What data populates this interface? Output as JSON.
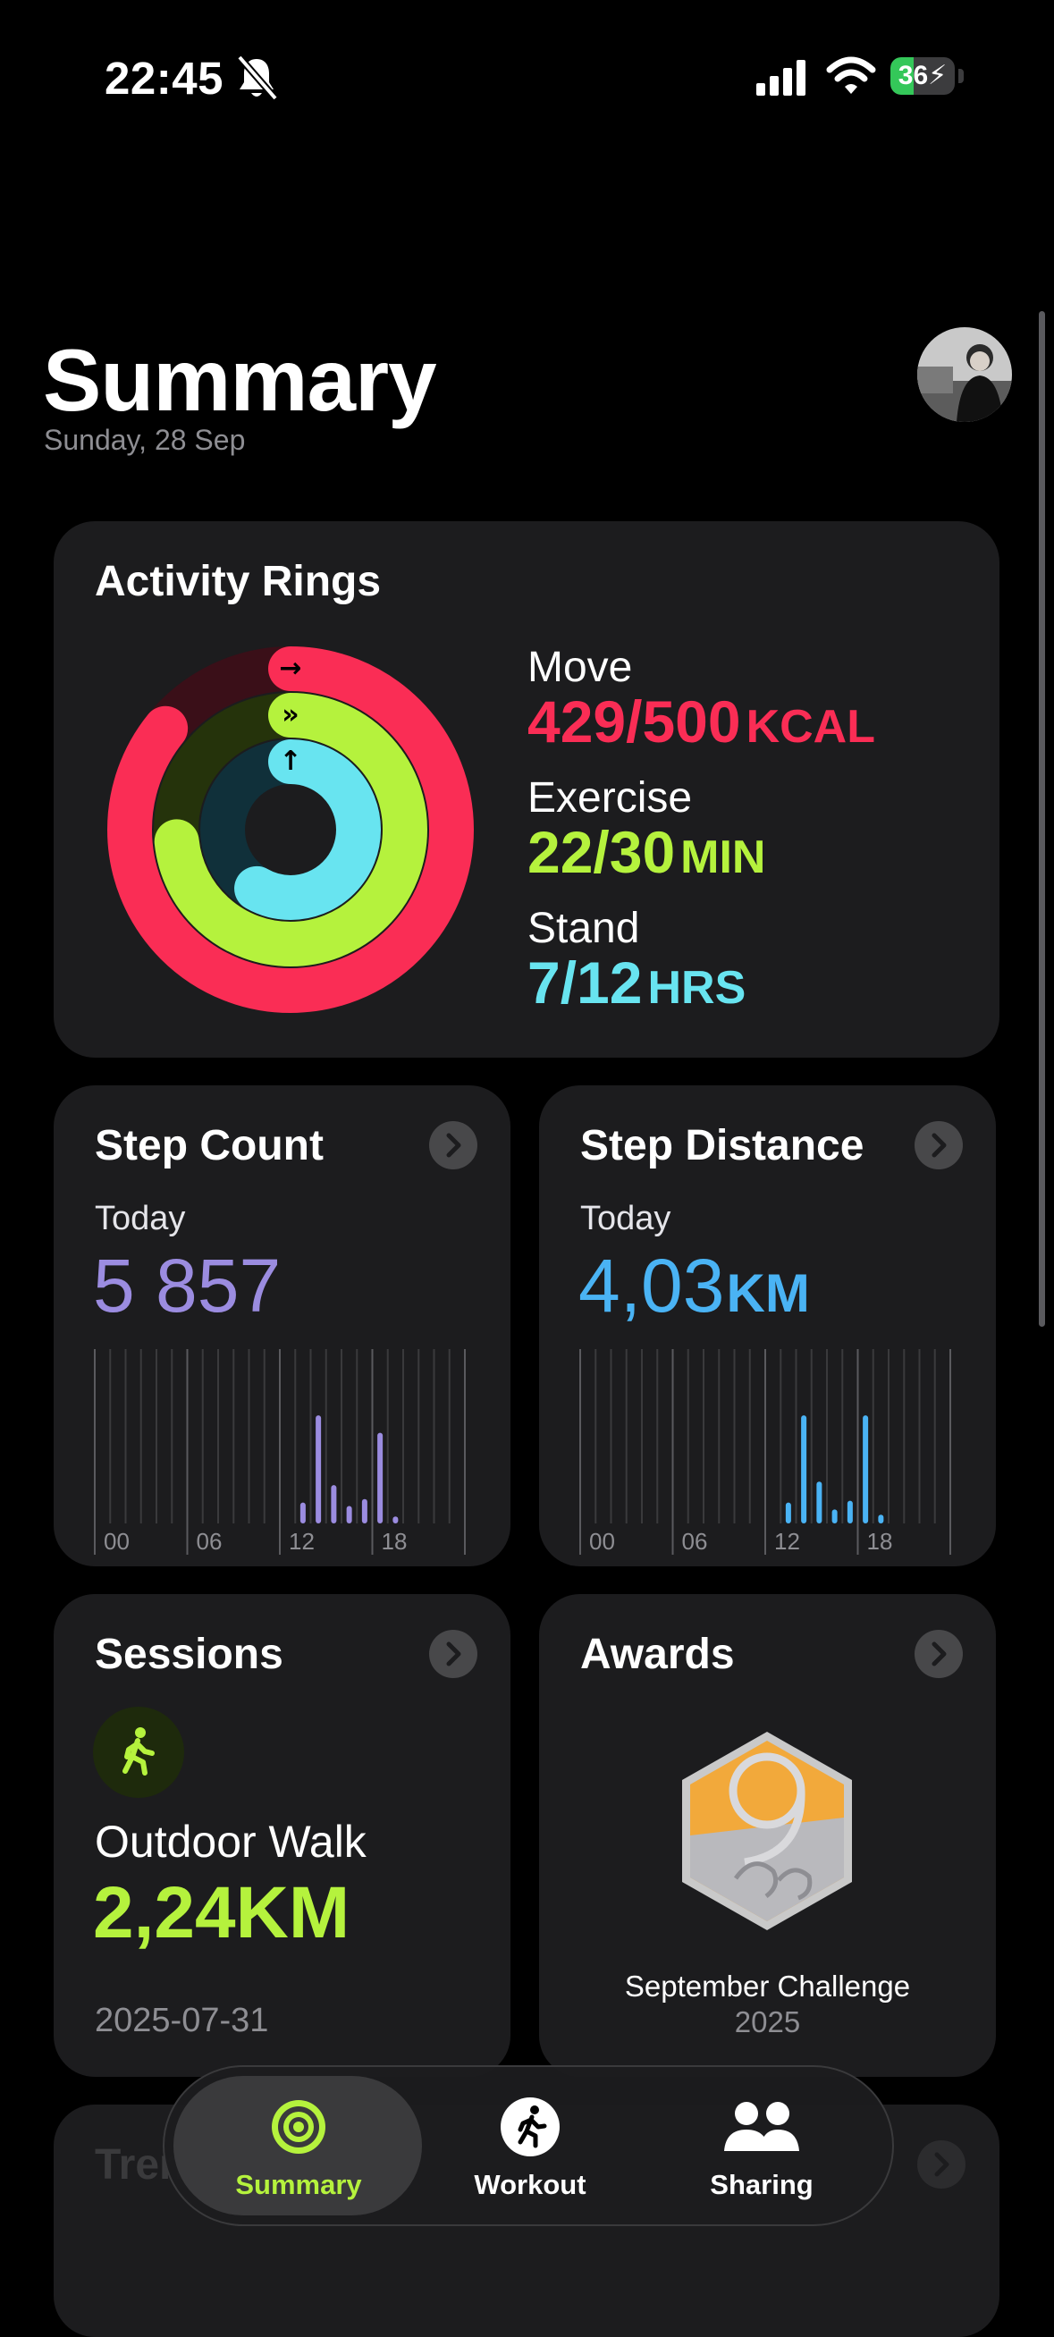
{
  "status_bar": {
    "time": "22:45",
    "battery_level": "36",
    "battery_fraction": 0.36,
    "icons": [
      "bell-slash-icon",
      "cellular-signal-icon",
      "wifi-icon",
      "battery-charging-icon"
    ]
  },
  "header": {
    "title": "Summary",
    "date": "Sunday, 28 Sep"
  },
  "colors": {
    "move": "#fa2d55",
    "exercise": "#b5f23d",
    "stand": "#68e4f0",
    "steps": "#9b8ce0",
    "distance": "#4ab3f4",
    "background": "#000000",
    "card": "#1c1c1e"
  },
  "activity_rings": {
    "title": "Activity Rings",
    "move": {
      "label": "Move",
      "value": "429/500",
      "unit": "KCAL",
      "progress": 0.858
    },
    "exercise": {
      "label": "Exercise",
      "value": "22/30",
      "unit": "MIN",
      "progress": 0.733
    },
    "stand": {
      "label": "Stand",
      "value": "7/12",
      "unit": "HRS",
      "progress": 0.583
    }
  },
  "step_count": {
    "title": "Step Count",
    "period": "Today",
    "value": "5 857",
    "axis_labels": [
      "00",
      "06",
      "12",
      "18"
    ],
    "hourly_fraction": [
      0,
      0,
      0,
      0,
      0,
      0,
      0,
      0,
      0,
      0,
      0,
      0,
      0,
      0.12,
      0.62,
      0.22,
      0.1,
      0.14,
      0.52,
      0.04,
      0,
      0,
      0,
      0
    ]
  },
  "step_distance": {
    "title": "Step Distance",
    "period": "Today",
    "value": "4,03",
    "unit": "KM",
    "axis_labels": [
      "00",
      "06",
      "12",
      "18"
    ],
    "hourly_fraction": [
      0,
      0,
      0,
      0,
      0,
      0,
      0,
      0,
      0,
      0,
      0,
      0,
      0,
      0.12,
      0.62,
      0.24,
      0.08,
      0.13,
      0.62,
      0.05,
      0,
      0,
      0,
      0
    ]
  },
  "sessions": {
    "title": "Sessions",
    "icon": "walking-figure-icon",
    "activity": "Outdoor Walk",
    "distance": "2,24KM",
    "date": "2025-07-31"
  },
  "awards": {
    "title": "Awards",
    "icon": "september-challenge-medal-icon",
    "name": "September Challenge",
    "year": "2025"
  },
  "trends": {
    "title": "Trends"
  },
  "tab_bar": {
    "tabs": [
      {
        "label": "Summary",
        "icon": "activity-rings-icon",
        "selected": true
      },
      {
        "label": "Workout",
        "icon": "running-figure-icon",
        "selected": false
      },
      {
        "label": "Sharing",
        "icon": "people-icon",
        "selected": false
      }
    ]
  }
}
